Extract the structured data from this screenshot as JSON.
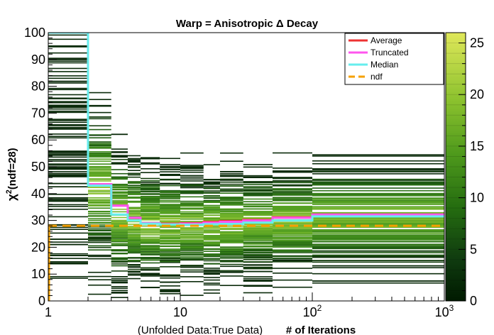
{
  "chart_data": {
    "type": "heatmap",
    "title": "Warp = Anisotropic Δ Decay",
    "xlabel_prefix": "(Unfolded Data:True Data)",
    "xlabel": "# of Iterations",
    "ylabel_main": "χ",
    "ylabel_sup": "2",
    "ylabel_rest": "(ndf=28)",
    "x_scale": "log",
    "xlim": [
      1,
      1000
    ],
    "ylim": [
      0,
      100
    ],
    "x_tick_labels": [
      {
        "value": 1,
        "label": "1"
      },
      {
        "value": 10,
        "label": "10"
      },
      {
        "value": 100,
        "label": "10",
        "exp": "2"
      },
      {
        "value": 1000,
        "label": "10",
        "exp": "3"
      }
    ],
    "y_ticks": [
      0,
      10,
      20,
      30,
      40,
      50,
      60,
      70,
      80,
      90,
      100
    ],
    "z_range": [
      0,
      26
    ],
    "z_ticks": [
      0,
      5,
      10,
      15,
      20,
      25
    ],
    "legend_position": "top-right",
    "colors": {
      "Average": "#ee3333",
      "Truncated": "#ff55ee",
      "Median": "#66eeee",
      "ndf": "#f5a000"
    },
    "series": [
      {
        "name": "Average",
        "style": "solid",
        "x": [
          1,
          2,
          3,
          4,
          5,
          7,
          10,
          15,
          20,
          30,
          50,
          100,
          1000
        ],
        "y": [
          100,
          43.5,
          35.5,
          31,
          29,
          28.8,
          29,
          29.5,
          29.8,
          30.2,
          31.2,
          32.2,
          32.2
        ]
      },
      {
        "name": "Truncated",
        "style": "solid",
        "x": [
          1,
          2,
          3,
          4,
          5,
          7,
          10,
          15,
          20,
          30,
          50,
          100,
          1000
        ],
        "y": [
          100,
          43.5,
          35.5,
          31,
          29,
          28.6,
          28.8,
          29.2,
          29.5,
          30,
          31,
          32.2,
          32.2
        ]
      },
      {
        "name": "Median",
        "style": "solid",
        "x": [
          1,
          2,
          3,
          4,
          5,
          7,
          10,
          15,
          20,
          30,
          50,
          100,
          1000
        ],
        "y": [
          100,
          43,
          32.2,
          30,
          28.8,
          28.5,
          28.4,
          28.6,
          28.7,
          29.2,
          30,
          31.5,
          31.5
        ]
      },
      {
        "name": "ndf",
        "style": "dashed",
        "x": [
          1,
          1000
        ],
        "y": [
          28,
          28
        ]
      }
    ]
  }
}
